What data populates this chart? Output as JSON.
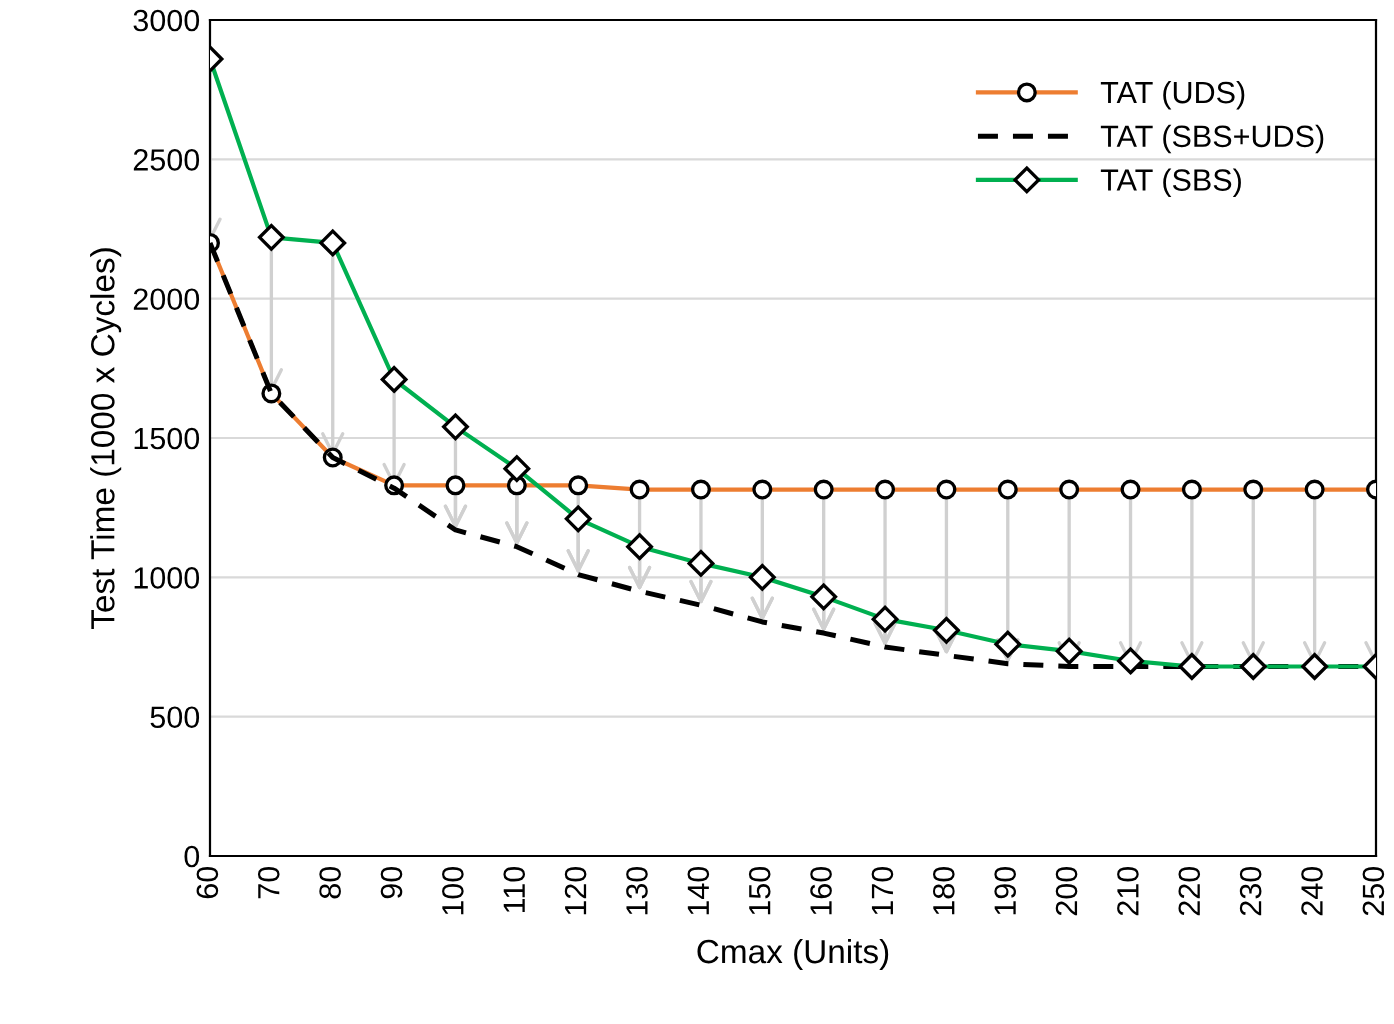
{
  "chart_data": {
    "type": "line",
    "xlabel": "Cmax (Units)",
    "ylabel": "Test Time (1000 x Cycles)",
    "x": [
      60,
      70,
      80,
      90,
      100,
      110,
      120,
      130,
      140,
      150,
      160,
      170,
      180,
      190,
      200,
      210,
      220,
      230,
      240,
      250
    ],
    "series": [
      {
        "name": "TAT (UDS)",
        "color": "#ed7d31",
        "marker": "circle",
        "line_style": "solid",
        "values": [
          2200,
          1660,
          1430,
          1330,
          1330,
          1330,
          1330,
          1315,
          1315,
          1315,
          1315,
          1315,
          1315,
          1315,
          1315,
          1315,
          1315,
          1315,
          1315,
          1315
        ]
      },
      {
        "name": "TAT (SBS+UDS)",
        "color": "#000000",
        "marker": "none",
        "line_style": "dashed",
        "values": [
          2200,
          1660,
          1430,
          1320,
          1170,
          1110,
          1010,
          950,
          900,
          840,
          800,
          750,
          720,
          690,
          680,
          680,
          680,
          680,
          680,
          680
        ]
      },
      {
        "name": "TAT (SBS)",
        "color": "#00b050",
        "marker": "diamond",
        "line_style": "solid",
        "values": [
          2860,
          2220,
          2200,
          1710,
          1540,
          1390,
          1210,
          1110,
          1050,
          1000,
          930,
          850,
          810,
          760,
          735,
          700,
          680,
          680,
          680,
          680
        ]
      }
    ],
    "xlim": [
      60,
      250
    ],
    "xticks": [
      60,
      70,
      80,
      90,
      100,
      110,
      120,
      130,
      140,
      150,
      160,
      170,
      180,
      190,
      200,
      210,
      220,
      230,
      240,
      250
    ],
    "ylim": [
      0,
      3000
    ],
    "yticks": [
      0,
      500,
      1000,
      1500,
      2000,
      2500,
      3000
    ],
    "grid": "y",
    "legend": "top right"
  }
}
